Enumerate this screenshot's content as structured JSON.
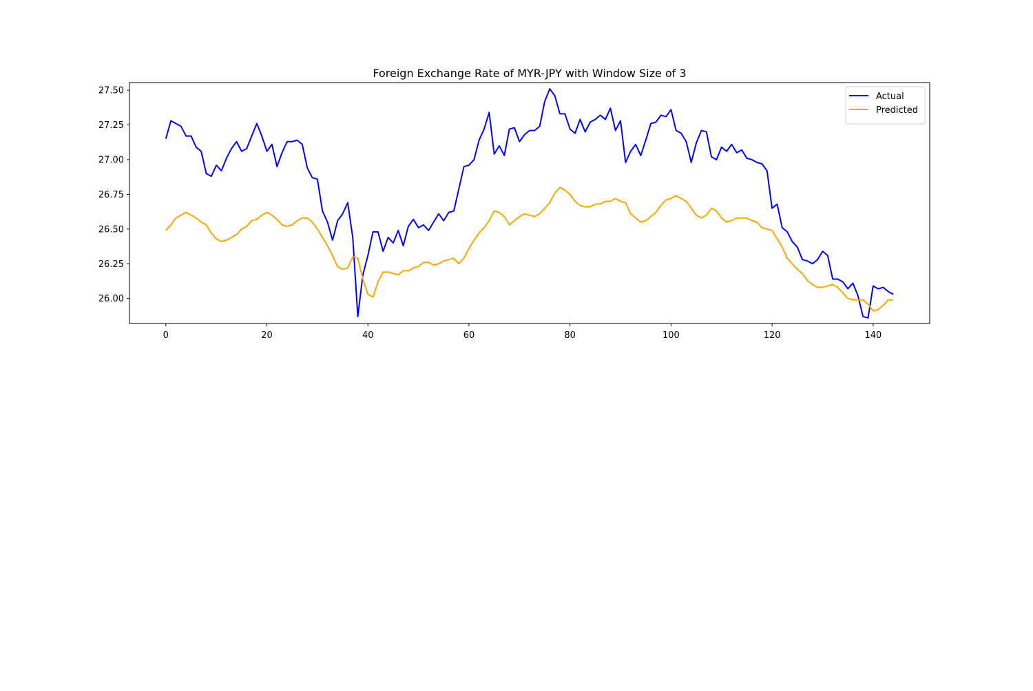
{
  "chart_data": {
    "type": "line",
    "title": "Foreign Exchange Rate of MYR-JPY with Window Size of 3",
    "xlabel": "",
    "ylabel": "",
    "xlim": [
      -7.2,
      151.2
    ],
    "ylim": [
      25.82,
      27.555
    ],
    "xticks": [
      0,
      20,
      40,
      60,
      80,
      100,
      120,
      140
    ],
    "yticks": [
      26.0,
      26.25,
      26.5,
      26.75,
      27.0,
      27.25,
      27.5
    ],
    "ytick_labels": [
      "26.00",
      "26.25",
      "26.50",
      "26.75",
      "27.00",
      "27.25",
      "27.50"
    ],
    "grid": false,
    "legend_position": "top-right",
    "series": [
      {
        "name": "Actual",
        "color": "#0000ff",
        "values": [
          27.15,
          27.28,
          27.26,
          27.24,
          27.17,
          27.17,
          27.09,
          27.06,
          26.9,
          26.88,
          26.96,
          26.92,
          27.01,
          27.08,
          27.13,
          27.06,
          27.08,
          27.17,
          27.26,
          27.17,
          27.06,
          27.11,
          26.95,
          27.05,
          27.13,
          27.13,
          27.14,
          27.11,
          26.94,
          26.87,
          26.86,
          26.63,
          26.55,
          26.42,
          26.56,
          26.61,
          26.69,
          26.44,
          25.87,
          26.17,
          26.31,
          26.48,
          26.48,
          26.34,
          26.44,
          26.4,
          26.49,
          26.38,
          26.52,
          26.57,
          26.51,
          26.53,
          26.49,
          26.55,
          26.61,
          26.56,
          26.62,
          26.63,
          26.79,
          26.95,
          26.96,
          27.0,
          27.14,
          27.22,
          27.34,
          27.04,
          27.1,
          27.03,
          27.22,
          27.23,
          27.13,
          27.18,
          27.21,
          27.21,
          27.24,
          27.42,
          27.51,
          27.46,
          27.33,
          27.33,
          27.22,
          27.19,
          27.29,
          27.2,
          27.27,
          27.29,
          27.32,
          27.29,
          27.37,
          27.21,
          27.28,
          26.98,
          27.06,
          27.11,
          27.03,
          27.14,
          27.26,
          27.27,
          27.32,
          27.31,
          27.36,
          27.21,
          27.19,
          27.13,
          26.98,
          27.12,
          27.21,
          27.2,
          27.02,
          27.0,
          27.09,
          27.06,
          27.11,
          27.05,
          27.07,
          27.01,
          27.0,
          26.98,
          26.97,
          26.92,
          26.65,
          26.68,
          26.51,
          26.48,
          26.41,
          26.37,
          26.28,
          26.27,
          26.25,
          26.28,
          26.34,
          26.31,
          26.14,
          26.14,
          26.12,
          26.07,
          26.11,
          26.02,
          25.87,
          25.86,
          26.09,
          26.07,
          26.08,
          26.05,
          26.03
        ]
      },
      {
        "name": "Predicted",
        "color": "#ffa500",
        "values": [
          26.49,
          26.53,
          26.58,
          26.6,
          26.62,
          26.6,
          26.58,
          26.55,
          26.53,
          26.47,
          26.43,
          26.41,
          26.42,
          26.44,
          26.46,
          26.5,
          26.52,
          26.56,
          26.57,
          26.6,
          26.62,
          26.6,
          26.57,
          26.53,
          26.52,
          26.53,
          26.56,
          26.58,
          26.58,
          26.55,
          26.5,
          26.44,
          26.38,
          26.31,
          26.23,
          26.21,
          26.22,
          26.3,
          26.29,
          26.14,
          26.03,
          26.01,
          26.12,
          26.19,
          26.19,
          26.18,
          26.17,
          26.2,
          26.2,
          26.22,
          26.23,
          26.26,
          26.26,
          26.24,
          26.25,
          26.27,
          26.28,
          26.29,
          26.25,
          26.29,
          26.36,
          26.42,
          26.47,
          26.51,
          26.56,
          26.63,
          26.62,
          26.59,
          26.53,
          26.56,
          26.59,
          26.61,
          26.6,
          26.59,
          26.61,
          26.65,
          26.69,
          26.76,
          26.8,
          26.78,
          26.75,
          26.7,
          26.67,
          26.66,
          26.66,
          26.68,
          26.68,
          26.7,
          26.7,
          26.72,
          26.7,
          26.69,
          26.61,
          26.58,
          26.55,
          26.56,
          26.59,
          26.62,
          26.67,
          26.71,
          26.72,
          26.74,
          26.72,
          26.7,
          26.65,
          26.6,
          26.58,
          26.6,
          26.65,
          26.63,
          26.58,
          26.55,
          26.56,
          26.58,
          26.58,
          26.58,
          26.56,
          26.55,
          26.51,
          26.5,
          26.49,
          26.43,
          26.37,
          26.29,
          26.25,
          26.21,
          26.18,
          26.13,
          26.1,
          26.08,
          26.08,
          26.09,
          26.1,
          26.08,
          26.04,
          26.0,
          25.99,
          25.99,
          25.99,
          25.96,
          25.91,
          25.92,
          25.95,
          25.99,
          25.99
        ]
      }
    ]
  }
}
